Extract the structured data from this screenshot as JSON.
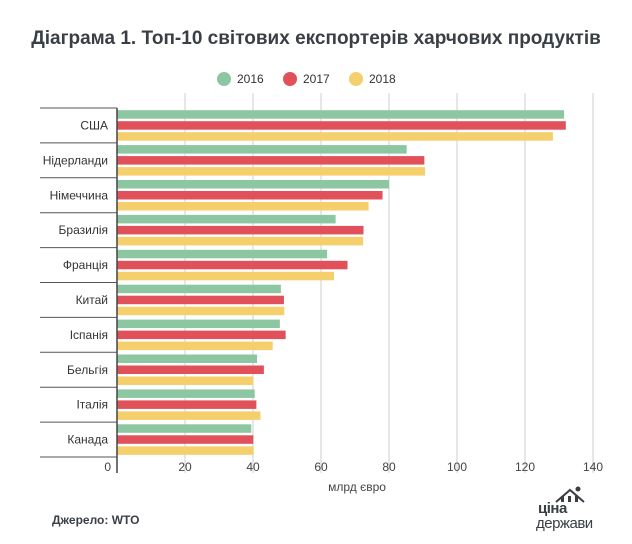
{
  "title": "Діаграма 1. Топ-10 світових експортерів харчових продуктів",
  "source": "Джерело: WTO",
  "logo": {
    "line1": "ціна",
    "line2": "держави"
  },
  "chart_data": {
    "type": "bar",
    "orientation": "horizontal",
    "categories": [
      "США",
      "Нідерланди",
      "Німеччина",
      "Бразилія",
      "Франція",
      "Китай",
      "Іспанія",
      "Бельгія",
      "Італія",
      "Канада"
    ],
    "series": [
      {
        "name": "2016",
        "color": "#8cc7a2",
        "values": [
          131.5,
          85.2,
          80.0,
          64.3,
          61.8,
          48.2,
          47.9,
          41.2,
          40.5,
          39.5
        ]
      },
      {
        "name": "2017",
        "color": "#e0515a",
        "values": [
          132.0,
          90.4,
          78.1,
          72.5,
          67.8,
          49.1,
          49.6,
          43.2,
          41.0,
          40.1
        ]
      },
      {
        "name": "2018",
        "color": "#f4cf6b",
        "values": [
          128.2,
          90.6,
          74.0,
          72.4,
          63.8,
          49.2,
          45.8,
          40.1,
          42.2,
          40.2
        ]
      }
    ],
    "x_ticks": [
      0,
      20,
      40,
      60,
      80,
      100,
      120,
      140
    ],
    "xlim": [
      0,
      140
    ],
    "xlabel": "млрд євро",
    "ylabel": "",
    "grid": "vertical",
    "legend_position": "top"
  }
}
